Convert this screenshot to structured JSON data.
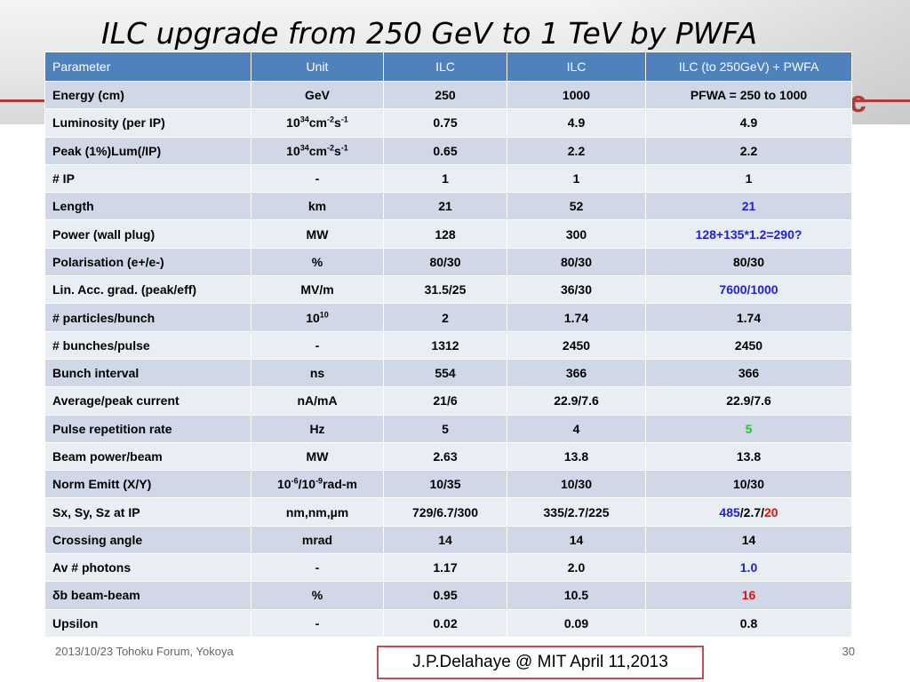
{
  "slide": {
    "title": "ILC upgrade from 250 GeV to 1 TeV by PWFA",
    "footer_left": "2013/10/23 Tohoku Forum, Yokoya",
    "footer_box": "J.P.Delahaye @ MIT April 11,2013",
    "page_number": "30"
  },
  "colors": {
    "header_bg": "#4f81bd",
    "row_odd": "#d0d8e8",
    "row_even": "#e9edf4",
    "blue_highlight": "#1f1fd6",
    "green_highlight": "#22cc22",
    "red_highlight": "#e01010",
    "accent_red": "#b23a3a"
  },
  "table": {
    "headers": [
      "Parameter",
      "Unit",
      "ILC",
      "ILC",
      "ILC (to 250GeV) + PWFA"
    ],
    "rows": [
      {
        "param": "Energy (cm)",
        "unit": "GeV",
        "ilc1": "250",
        "ilc2": "1000",
        "pwfa": "PFWA = 250 to 1000"
      },
      {
        "param": "Luminosity (per IP)",
        "unit": {
          "a": "10",
          "s1": "34",
          "b": "cm",
          "s2": "-2",
          "c": "s",
          "s3": "-1"
        },
        "ilc1": "0.75",
        "ilc2": "4.9",
        "pwfa": "4.9"
      },
      {
        "param": "Peak (1%)Lum(/IP)",
        "unit": {
          "a": "10",
          "s1": "34",
          "b": "cm",
          "s2": "-2",
          "c": "s",
          "s3": "-1"
        },
        "ilc1": "0.65",
        "ilc2": "2.2",
        "pwfa": "2.2"
      },
      {
        "param": "# IP",
        "unit": "-",
        "ilc1": "1",
        "ilc2": "1",
        "pwfa": "1"
      },
      {
        "param": "Length",
        "unit": "km",
        "ilc1": "21",
        "ilc2": "52",
        "pwfa": "21"
      },
      {
        "param": "Power (wall plug)",
        "unit": "MW",
        "ilc1": "128",
        "ilc2": "300",
        "pwfa": "128+135*1.2=290?"
      },
      {
        "param": "Polarisation (e+/e-)",
        "unit": "%",
        "ilc1": "80/30",
        "ilc2": "80/30",
        "pwfa": "80/30"
      },
      {
        "param": "Lin. Acc. grad. (peak/eff)",
        "unit": "MV/m",
        "ilc1": "31.5/25",
        "ilc2": "36/30",
        "pwfa": "7600/1000"
      },
      {
        "param": "# particles/bunch",
        "unit": {
          "a": "10",
          "s1": "10"
        },
        "ilc1": "2",
        "ilc2": "1.74",
        "pwfa": "1.74"
      },
      {
        "param": "# bunches/pulse",
        "unit": "-",
        "ilc1": "1312",
        "ilc2": "2450",
        "pwfa": "2450"
      },
      {
        "param": "Bunch interval",
        "unit": "ns",
        "ilc1": "554",
        "ilc2": "366",
        "pwfa": "366"
      },
      {
        "param": "Average/peak current",
        "unit": "nA/mA",
        "ilc1": "21/6",
        "ilc2": "22.9/7.6",
        "pwfa": "22.9/7.6"
      },
      {
        "param": "Pulse repetition rate",
        "unit": "Hz",
        "ilc1": "5",
        "ilc2": "4",
        "pwfa": "5"
      },
      {
        "param": "Beam power/beam",
        "unit": "MW",
        "ilc1": "2.63",
        "ilc2": "13.8",
        "pwfa": "13.8"
      },
      {
        "param": "Norm Emitt (X/Y)",
        "unit": {
          "a": "10",
          "s1": "-6",
          "b": "/10",
          "s2": "-9",
          "c": "rad-m"
        },
        "ilc1": "10/35",
        "ilc2": "10/30",
        "pwfa": "10/30"
      },
      {
        "param": "Sx, Sy, Sz at IP",
        "unit": "nm,nm,µm",
        "ilc1": "729/6.7/300",
        "ilc2": "335/2.7/225",
        "pwfa": {
          "p1": "485",
          "p2": "/2.7/",
          "p3": "20"
        }
      },
      {
        "param": "Crossing angle",
        "unit": "mrad",
        "ilc1": "14",
        "ilc2": "14",
        "pwfa": "14"
      },
      {
        "param": "Av # photons",
        "unit": "-",
        "ilc1": "1.17",
        "ilc2": "2.0",
        "pwfa": "1.0"
      },
      {
        "param": "δb beam-beam",
        "unit": "%",
        "ilc1": "0.95",
        "ilc2": "10.5",
        "pwfa": "16"
      },
      {
        "param": "Upsilon",
        "unit": "-",
        "ilc1": "0.02",
        "ilc2": "0.09",
        "pwfa": "0.8"
      }
    ]
  }
}
